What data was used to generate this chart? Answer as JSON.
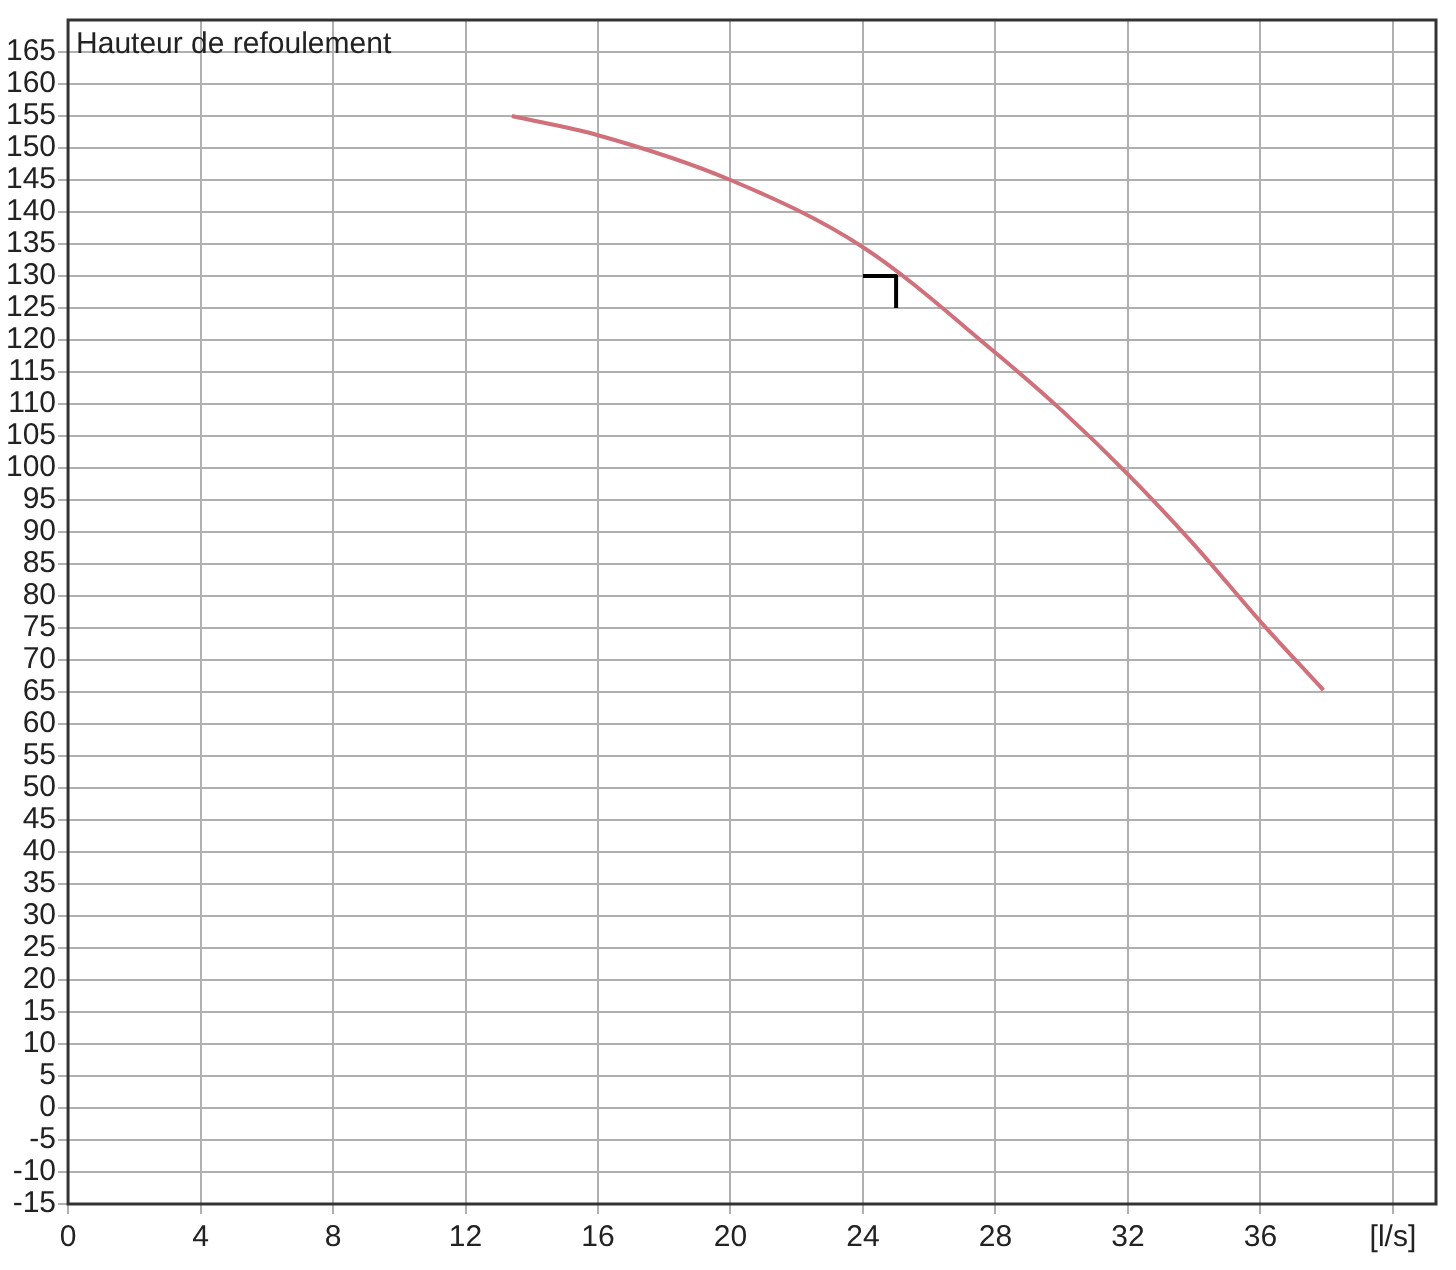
{
  "chart_data": {
    "type": "line",
    "ylabel": "Hauteur de refoulement",
    "xlim": [
      0,
      41.3
    ],
    "xticks": [
      0,
      4,
      8,
      12,
      16,
      20,
      24,
      28,
      32,
      36,
      {
        "value": 40,
        "label": "[l/s]"
      }
    ],
    "ylim": [
      -15,
      170
    ],
    "yticks": [
      -15,
      -10,
      -5,
      0,
      5,
      10,
      15,
      20,
      25,
      30,
      35,
      40,
      45,
      50,
      55,
      60,
      65,
      70,
      75,
      80,
      85,
      90,
      95,
      100,
      105,
      110,
      115,
      120,
      125,
      130,
      135,
      140,
      145,
      150,
      155,
      160,
      165
    ],
    "grid": true,
    "legend": false,
    "marker": "none",
    "line_style": "solid",
    "series": [
      {
        "color": "#d0707a",
        "x": [
          13.4,
          16,
          20,
          24,
          28,
          30,
          32,
          34,
          36,
          37.9
        ],
        "values": [
          155,
          152,
          145,
          134.5,
          118,
          109,
          99,
          88,
          76,
          65.3
        ]
      },
      {
        "color": "#000000",
        "x": [
          24,
          25,
          25
        ],
        "values": [
          130,
          130,
          125
        ]
      }
    ]
  }
}
